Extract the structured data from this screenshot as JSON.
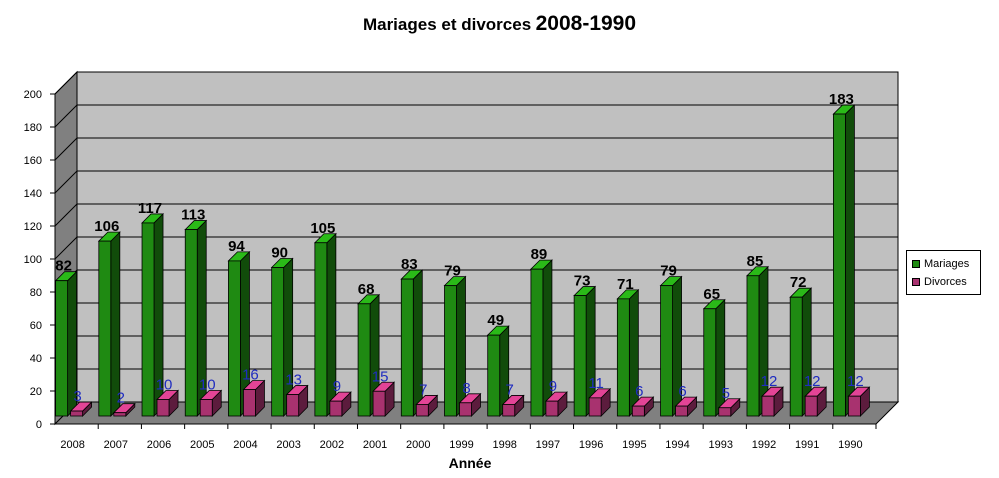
{
  "chart_data": {
    "type": "bar",
    "title": "Mariages et divorces",
    "title_years": "2008-1990",
    "xlabel": "Année",
    "ylabel": "",
    "ylim": [
      0,
      200
    ],
    "yticks": [
      0,
      20,
      40,
      60,
      80,
      100,
      120,
      140,
      160,
      180,
      200
    ],
    "grid": true,
    "legend_position": "right",
    "categories": [
      "2008",
      "2007",
      "2006",
      "2005",
      "2004",
      "2003",
      "2002",
      "2001",
      "2000",
      "1999",
      "1998",
      "1997",
      "1996",
      "1995",
      "1994",
      "1993",
      "1992",
      "1991",
      "1990"
    ],
    "series": [
      {
        "name": "Mariages",
        "color": "#1f8a12",
        "values": [
          82,
          106,
          117,
          113,
          94,
          90,
          105,
          68,
          83,
          79,
          49,
          89,
          73,
          71,
          79,
          65,
          85,
          72,
          183
        ]
      },
      {
        "name": "Divorces",
        "color": "#a8326f",
        "values": [
          3,
          2,
          10,
          10,
          16,
          13,
          9,
          15,
          7,
          8,
          7,
          9,
          11,
          6,
          6,
          5,
          12,
          12,
          12
        ]
      }
    ]
  }
}
